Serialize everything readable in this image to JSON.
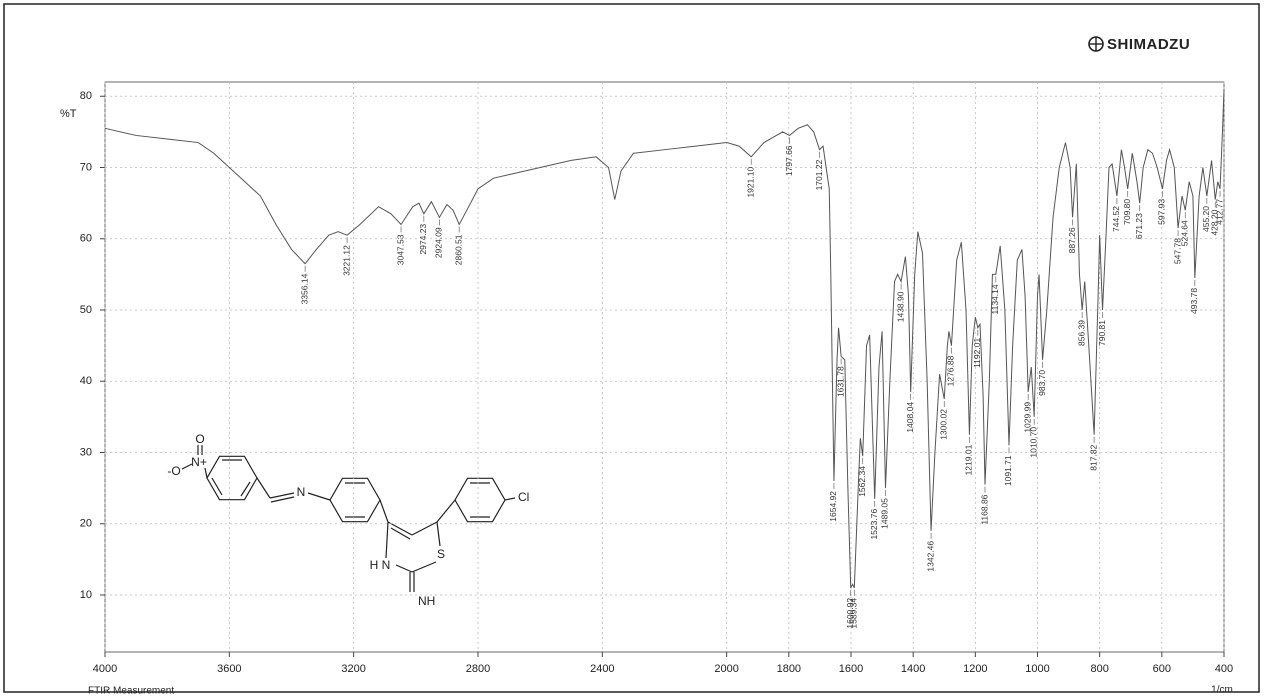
{
  "chart_data": {
    "type": "line",
    "brand": "SHIMADZU",
    "y_label": "%T",
    "x_label": "1/cm",
    "footer": "FTIR Measurement",
    "color": "#555555",
    "xlim": [
      4000,
      400
    ],
    "ylim": [
      2,
      82
    ],
    "xticks": [
      4000,
      3600,
      3200,
      2800,
      2400,
      2000,
      1800,
      1600,
      1400,
      1200,
      1000,
      800,
      600,
      400
    ],
    "yticks": [
      10,
      20,
      30,
      40,
      50,
      60,
      70,
      80
    ],
    "grid": true,
    "x": [
      4000,
      3900,
      3800,
      3700,
      3650,
      3600,
      3550,
      3500,
      3450,
      3400,
      3356.14,
      3320,
      3280,
      3250,
      3221.12,
      3180,
      3120,
      3080,
      3047.53,
      3010,
      2990,
      2974.23,
      2950,
      2924.09,
      2900,
      2880,
      2860.51,
      2830,
      2800,
      2750,
      2700,
      2600,
      2500,
      2420,
      2380,
      2360,
      2340,
      2300,
      2200,
      2100,
      2000,
      1960,
      1921.1,
      1880,
      1840,
      1820,
      1797.66,
      1770,
      1740,
      1720,
      1701.22,
      1690,
      1670,
      1665,
      1654.92,
      1645,
      1640,
      1631.78,
      1620,
      1610,
      1600.92,
      1595,
      1589.34,
      1575,
      1570,
      1562.34,
      1550,
      1540,
      1523.76,
      1510,
      1500,
      1489.05,
      1475,
      1460,
      1450,
      1438.9,
      1425,
      1415,
      1408.04,
      1395,
      1385,
      1370,
      1355,
      1342.46,
      1330,
      1315,
      1300.02,
      1290,
      1285,
      1276.88,
      1260,
      1245,
      1230,
      1219.01,
      1210,
      1200,
      1192.01,
      1185,
      1175,
      1168.86,
      1155,
      1145,
      1134.14,
      1120,
      1105,
      1091.71,
      1080,
      1065,
      1050,
      1040,
      1029.99,
      1020,
      1010.7,
      1000,
      995,
      983.7,
      970,
      950,
      930,
      910,
      895,
      887.26,
      875,
      865,
      856.39,
      848,
      835,
      817.82,
      805,
      800,
      790.81,
      780,
      770,
      760,
      744.52,
      730,
      720,
      709.8,
      695,
      680,
      671.23,
      660,
      645,
      630,
      615,
      597.93,
      585,
      575,
      560,
      547.78,
      535,
      524.64,
      512,
      500,
      493.78,
      480,
      468,
      455.2,
      440,
      428.2,
      420,
      412.77,
      405,
      400
    ],
    "values": [
      75.5,
      74.5,
      74,
      73.5,
      72,
      70,
      68,
      66,
      62,
      58.5,
      56.5,
      58.5,
      60.5,
      61,
      60.5,
      62,
      64.5,
      63.5,
      62,
      64.5,
      65,
      63.5,
      65.2,
      63,
      64.8,
      64,
      62,
      64.5,
      67,
      68.5,
      69,
      70,
      71,
      71.5,
      70,
      65.5,
      69.5,
      72,
      72.5,
      73,
      73.5,
      73,
      71.5,
      73.5,
      74.5,
      75,
      74.5,
      75.5,
      76,
      75,
      72.5,
      73,
      67,
      55,
      26,
      43,
      47.5,
      43.5,
      43,
      25,
      11,
      11.5,
      11,
      27,
      32,
      29.5,
      45,
      46.5,
      23.5,
      42,
      47,
      25,
      40,
      54,
      55,
      54,
      57.5,
      52,
      38.5,
      55,
      61,
      58,
      40,
      19,
      30,
      41,
      37.5,
      45,
      47,
      45,
      57,
      59.5,
      50,
      32.5,
      45,
      49,
      47.5,
      48,
      38,
      25.5,
      40,
      55,
      55,
      59,
      50,
      31,
      45,
      57,
      58.5,
      52,
      38.5,
      42,
      35,
      52,
      55,
      43,
      50,
      63,
      70,
      73.5,
      70,
      63,
      70.5,
      55,
      50,
      54,
      45,
      32.5,
      52,
      60.5,
      50,
      60,
      70,
      70.5,
      66,
      72.5,
      70,
      67,
      72,
      68,
      65,
      70,
      72.5,
      72,
      70,
      67,
      71,
      72.5,
      70,
      61.5,
      66,
      64,
      68,
      66,
      54.5,
      66,
      70,
      66,
      71,
      65.5,
      68,
      67,
      75,
      81
    ],
    "annotations": [
      {
        "x": 3356.14,
        "text": "3356.14"
      },
      {
        "x": 3221.12,
        "text": "3221.12"
      },
      {
        "x": 3047.53,
        "text": "3047.53"
      },
      {
        "x": 2974.23,
        "text": "2974.23"
      },
      {
        "x": 2924.09,
        "text": "2924.09"
      },
      {
        "x": 2860.51,
        "text": "2860.51"
      },
      {
        "x": 1921.1,
        "text": "1921.10"
      },
      {
        "x": 1797.66,
        "text": "1797.66"
      },
      {
        "x": 1701.22,
        "text": "1701.22"
      },
      {
        "x": 1654.92,
        "text": "1654.92"
      },
      {
        "x": 1631.78,
        "text": "1631.78"
      },
      {
        "x": 1600.92,
        "text": "1600.92"
      },
      {
        "x": 1589.34,
        "text": "1589.34"
      },
      {
        "x": 1562.34,
        "text": "1562.34"
      },
      {
        "x": 1523.76,
        "text": "1523.76"
      },
      {
        "x": 1489.05,
        "text": "1489.05"
      },
      {
        "x": 1438.9,
        "text": "1438.90"
      },
      {
        "x": 1408.04,
        "text": "1408.04"
      },
      {
        "x": 1342.46,
        "text": "1342.46"
      },
      {
        "x": 1300.02,
        "text": "1300.02"
      },
      {
        "x": 1276.88,
        "text": "1276.88"
      },
      {
        "x": 1219.01,
        "text": "1219.01"
      },
      {
        "x": 1192.01,
        "text": "1192.01"
      },
      {
        "x": 1168.86,
        "text": "1168.86"
      },
      {
        "x": 1134.14,
        "text": "1134.14"
      },
      {
        "x": 1091.71,
        "text": "1091.71"
      },
      {
        "x": 1029.99,
        "text": "1029.99"
      },
      {
        "x": 1010.7,
        "text": "1010.70"
      },
      {
        "x": 983.7,
        "text": "983.70"
      },
      {
        "x": 887.26,
        "text": "887.26"
      },
      {
        "x": 856.39,
        "text": "856.39"
      },
      {
        "x": 817.82,
        "text": "817.82"
      },
      {
        "x": 790.81,
        "text": "790.81"
      },
      {
        "x": 744.52,
        "text": "744.52"
      },
      {
        "x": 709.8,
        "text": "709.80"
      },
      {
        "x": 671.23,
        "text": "671.23"
      },
      {
        "x": 597.93,
        "text": "597.93"
      },
      {
        "x": 547.78,
        "text": "547.78"
      },
      {
        "x": 524.64,
        "text": "524.64"
      },
      {
        "x": 493.78,
        "text": "493.78"
      },
      {
        "x": 455.2,
        "text": "455.20"
      },
      {
        "x": 428.2,
        "text": "428.20"
      },
      {
        "x": 412.77,
        "text": "412.77"
      }
    ],
    "structure_labels": [
      "O",
      "N+",
      "-O",
      "N",
      "H N",
      "S",
      "NH",
      "Cl"
    ]
  }
}
